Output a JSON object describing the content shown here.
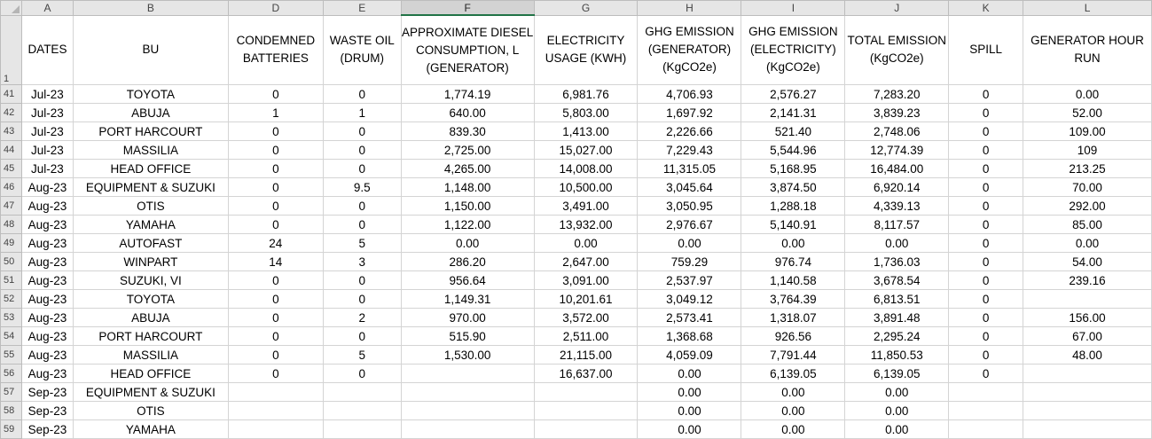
{
  "columns": [
    "A",
    "B",
    "D",
    "E",
    "F",
    "G",
    "H",
    "I",
    "J",
    "K",
    "L"
  ],
  "selected_column": "F",
  "header_row_number": "1",
  "headers": [
    "DATES",
    "BU",
    "CONDEMNED BATTERIES",
    "WASTE OIL (DRUM)",
    "APPROXIMATE DIESEL CONSUMPTION, L (GENERATOR)",
    "ELECTRICITY USAGE (KWH)",
    "GHG EMISSION (GENERATOR) (KgCO2e)",
    "GHG EMISSION (ELECTRICITY) (KgCO2e)",
    "TOTAL EMISSION (KgCO2e)",
    "SPILL",
    "GENERATOR HOUR RUN"
  ],
  "rows": [
    {
      "num": "41",
      "cells": [
        "Jul-23",
        "TOYOTA",
        "0",
        "0",
        "1,774.19",
        "6,981.76",
        "4,706.93",
        "2,576.27",
        "7,283.20",
        "0",
        "0.00"
      ]
    },
    {
      "num": "42",
      "cells": [
        "Jul-23",
        "ABUJA",
        "1",
        "1",
        "640.00",
        "5,803.00",
        "1,697.92",
        "2,141.31",
        "3,839.23",
        "0",
        "52.00"
      ]
    },
    {
      "num": "43",
      "cells": [
        "Jul-23",
        "PORT HARCOURT",
        "0",
        "0",
        "839.30",
        "1,413.00",
        "2,226.66",
        "521.40",
        "2,748.06",
        "0",
        "109.00"
      ]
    },
    {
      "num": "44",
      "cells": [
        "Jul-23",
        "MASSILIA",
        "0",
        "0",
        "2,725.00",
        "15,027.00",
        "7,229.43",
        "5,544.96",
        "12,774.39",
        "0",
        "109"
      ]
    },
    {
      "num": "45",
      "cells": [
        "Jul-23",
        "HEAD OFFICE",
        "0",
        "0",
        "4,265.00",
        "14,008.00",
        "11,315.05",
        "5,168.95",
        "16,484.00",
        "0",
        "213.25"
      ]
    },
    {
      "num": "46",
      "cells": [
        "Aug-23",
        "EQUIPMENT & SUZUKI",
        "0",
        "9.5",
        "1,148.00",
        "10,500.00",
        "3,045.64",
        "3,874.50",
        "6,920.14",
        "0",
        "70.00"
      ]
    },
    {
      "num": "47",
      "cells": [
        "Aug-23",
        "OTIS",
        "0",
        "0",
        "1,150.00",
        "3,491.00",
        "3,050.95",
        "1,288.18",
        "4,339.13",
        "0",
        "292.00"
      ]
    },
    {
      "num": "48",
      "cells": [
        "Aug-23",
        "YAMAHA",
        "0",
        "0",
        "1,122.00",
        "13,932.00",
        "2,976.67",
        "5,140.91",
        "8,117.57",
        "0",
        "85.00"
      ]
    },
    {
      "num": "49",
      "cells": [
        "Aug-23",
        "AUTOFAST",
        "24",
        "5",
        "0.00",
        "0.00",
        "0.00",
        "0.00",
        "0.00",
        "0",
        "0.00"
      ]
    },
    {
      "num": "50",
      "cells": [
        "Aug-23",
        "WINPART",
        "14",
        "3",
        "286.20",
        "2,647.00",
        "759.29",
        "976.74",
        "1,736.03",
        "0",
        "54.00"
      ]
    },
    {
      "num": "51",
      "cells": [
        "Aug-23",
        "SUZUKI, VI",
        "0",
        "0",
        "956.64",
        "3,091.00",
        "2,537.97",
        "1,140.58",
        "3,678.54",
        "0",
        "239.16"
      ]
    },
    {
      "num": "52",
      "cells": [
        "Aug-23",
        "TOYOTA",
        "0",
        "0",
        "1,149.31",
        "10,201.61",
        "3,049.12",
        "3,764.39",
        "6,813.51",
        "0",
        ""
      ]
    },
    {
      "num": "53",
      "cells": [
        "Aug-23",
        "ABUJA",
        "0",
        "2",
        "970.00",
        "3,572.00",
        "2,573.41",
        "1,318.07",
        "3,891.48",
        "0",
        "156.00"
      ]
    },
    {
      "num": "54",
      "cells": [
        "Aug-23",
        "PORT HARCOURT",
        "0",
        "0",
        "515.90",
        "2,511.00",
        "1,368.68",
        "926.56",
        "2,295.24",
        "0",
        "67.00"
      ]
    },
    {
      "num": "55",
      "cells": [
        "Aug-23",
        "MASSILIA",
        "0",
        "5",
        "1,530.00",
        "21,115.00",
        "4,059.09",
        "7,791.44",
        "11,850.53",
        "0",
        "48.00"
      ]
    },
    {
      "num": "56",
      "cells": [
        "Aug-23",
        "HEAD OFFICE",
        "0",
        "0",
        "",
        "16,637.00",
        "0.00",
        "6,139.05",
        "6,139.05",
        "0",
        ""
      ]
    },
    {
      "num": "57",
      "cells": [
        "Sep-23",
        "EQUIPMENT & SUZUKI",
        "",
        "",
        "",
        "",
        "0.00",
        "0.00",
        "0.00",
        "",
        ""
      ]
    },
    {
      "num": "58",
      "cells": [
        "Sep-23",
        "OTIS",
        "",
        "",
        "",
        "",
        "0.00",
        "0.00",
        "0.00",
        "",
        ""
      ]
    },
    {
      "num": "59",
      "cells": [
        "Sep-23",
        "YAMAHA",
        "",
        "",
        "",
        "",
        "0.00",
        "0.00",
        "0.00",
        "",
        ""
      ]
    }
  ]
}
